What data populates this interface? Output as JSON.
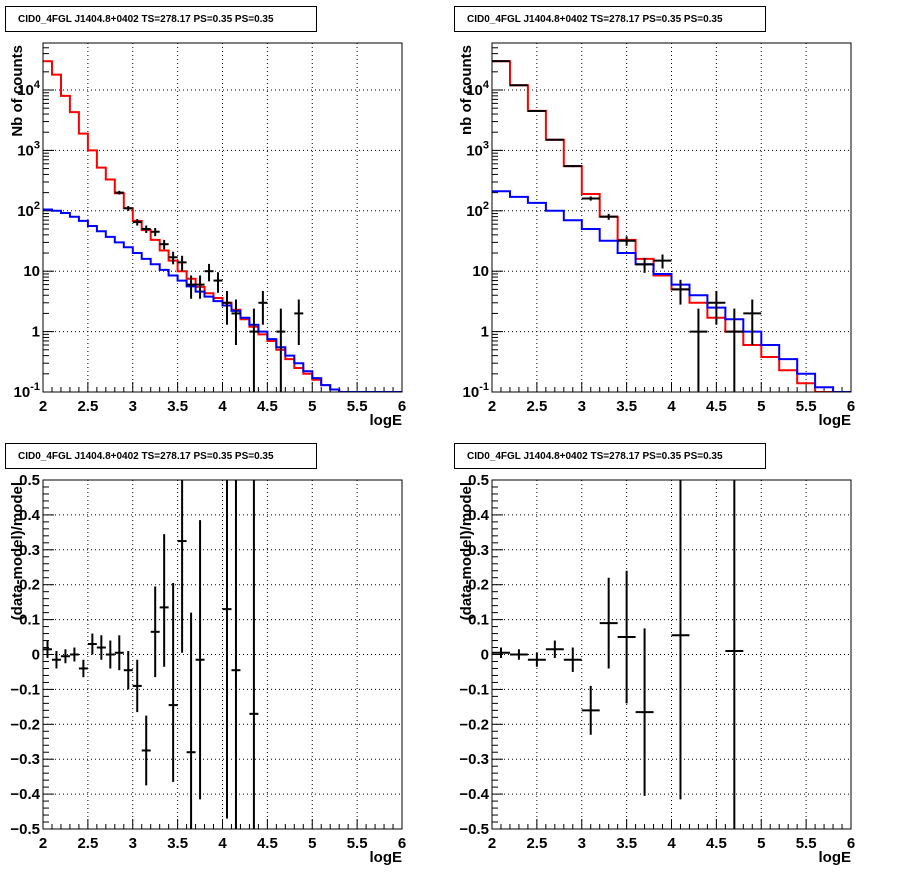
{
  "chart_data": [
    {
      "type": "line",
      "title": "CID0_4FGL J1404.8+0402 TS=278.17 PS=0.35 PS=0.35",
      "xlabel": "logE",
      "ylabel": "Nb of counts",
      "xlim": [
        2,
        6
      ],
      "ylim": [
        0.1,
        60000
      ],
      "ylog": true,
      "grid": true,
      "xticks": [
        "2",
        "2.5",
        "3",
        "3.5",
        "4",
        "4.5",
        "5",
        "5.5",
        "6"
      ],
      "yticks": [
        {
          "v": 0.1,
          "label": "10",
          "sup": "-1"
        },
        {
          "v": 1,
          "label": "1",
          "sup": ""
        },
        {
          "v": 10,
          "label": "10",
          "sup": ""
        },
        {
          "v": 100,
          "label": "10",
          "sup": "2"
        },
        {
          "v": 1000,
          "label": "10",
          "sup": "3"
        },
        {
          "v": 10000,
          "label": "10",
          "sup": "4"
        }
      ],
      "binwidth": 0.1,
      "series": [
        {
          "color": "#ff0000",
          "kind": "hist",
          "x": [
            2.0,
            2.1,
            2.2,
            2.3,
            2.4,
            2.5,
            2.6,
            2.7,
            2.8,
            2.9,
            3.0,
            3.1,
            3.2,
            3.3,
            3.4,
            3.5,
            3.6,
            3.7,
            3.8,
            3.9,
            4.0,
            4.1,
            4.2,
            4.3,
            4.4,
            4.5,
            4.6,
            4.7,
            4.8,
            4.9,
            5.0,
            5.1,
            5.2,
            5.3,
            5.4,
            5.5,
            5.6,
            5.7,
            5.8,
            5.9
          ],
          "y": [
            30000,
            18000,
            8000,
            4300,
            1900,
            1000,
            520,
            330,
            195,
            110,
            68,
            48,
            33,
            22,
            15,
            10,
            7.5,
            5.5,
            4.3,
            3.6,
            3.0,
            2.3,
            1.6,
            1.2,
            0.9,
            0.7,
            0.5,
            0.35,
            0.25,
            0.2,
            0.16,
            0.13,
            0.11,
            0.1,
            0.1,
            0.1,
            0.1,
            0.1,
            0.1,
            0.1
          ]
        },
        {
          "color": "#0000ff",
          "kind": "hist",
          "x": [
            2.0,
            2.1,
            2.2,
            2.3,
            2.4,
            2.5,
            2.6,
            2.7,
            2.8,
            2.9,
            3.0,
            3.1,
            3.2,
            3.3,
            3.4,
            3.5,
            3.6,
            3.7,
            3.8,
            3.9,
            4.0,
            4.1,
            4.2,
            4.3,
            4.4,
            4.5,
            4.6,
            4.7,
            4.8,
            4.9,
            5.0,
            5.1,
            5.2,
            5.3,
            5.4,
            5.5,
            5.6,
            5.7,
            5.8,
            5.9
          ],
          "y": [
            105,
            100,
            92,
            80,
            68,
            56,
            46,
            37,
            30,
            25,
            20,
            16,
            13,
            10.5,
            8.5,
            7,
            5.6,
            4.6,
            3.8,
            3.2,
            2.7,
            2.2,
            1.7,
            1.3,
            1.0,
            0.75,
            0.55,
            0.4,
            0.3,
            0.22,
            0.17,
            0.13,
            0.11,
            0.1,
            0.1,
            0.1,
            0.1,
            0.1,
            0.1,
            0.1
          ]
        },
        {
          "color": "#000000",
          "kind": "errbar",
          "x": [
            2.85,
            2.95,
            3.05,
            3.15,
            3.25,
            3.35,
            3.45,
            3.55,
            3.65,
            3.75,
            3.85,
            3.95,
            4.05,
            4.15,
            4.35,
            4.45,
            4.65,
            4.85
          ],
          "y": [
            200,
            110,
            65,
            50,
            45,
            28,
            17,
            14,
            6,
            6,
            10,
            7,
            3,
            2,
            1,
            3,
            1,
            2
          ],
          "yerr_low": [
            14,
            10,
            8,
            7,
            7,
            5,
            4,
            4,
            2.5,
            2.5,
            3.2,
            2.6,
            1.7,
            1.4,
            0.9,
            1.7,
            0.9,
            1.4
          ],
          "yerr_high": [
            14,
            10,
            8,
            7,
            7,
            5,
            4,
            4,
            2.5,
            2.5,
            3.2,
            2.6,
            1.7,
            1.4,
            1.4,
            1.7,
            1.4,
            1.4
          ]
        }
      ]
    },
    {
      "type": "line",
      "title": "CID0_4FGL J1404.8+0402 TS=278.17 PS=0.35 PS=0.35",
      "xlabel": "logE",
      "ylabel": "nb of counts",
      "xlim": [
        2,
        6
      ],
      "ylim": [
        0.1,
        60000
      ],
      "ylog": true,
      "grid": true,
      "xticks": [
        "2",
        "2.5",
        "3",
        "3.5",
        "4",
        "4.5",
        "5",
        "5.5",
        "6"
      ],
      "yticks": [
        {
          "v": 0.1,
          "label": "10",
          "sup": "-1"
        },
        {
          "v": 1,
          "label": "1",
          "sup": ""
        },
        {
          "v": 10,
          "label": "10",
          "sup": ""
        },
        {
          "v": 100,
          "label": "10",
          "sup": "2"
        },
        {
          "v": 1000,
          "label": "10",
          "sup": "3"
        },
        {
          "v": 10000,
          "label": "10",
          "sup": "4"
        }
      ],
      "binwidth": 0.2,
      "series": [
        {
          "color": "#ff0000",
          "kind": "hist",
          "x": [
            2.0,
            2.2,
            2.4,
            2.6,
            2.8,
            3.0,
            3.2,
            3.4,
            3.6,
            3.8,
            4.0,
            4.2,
            4.4,
            4.6,
            4.8,
            5.0,
            5.2,
            5.4,
            5.6,
            5.8
          ],
          "y": [
            30000,
            12000,
            4500,
            1500,
            550,
            190,
            80,
            33,
            16,
            8.5,
            5.0,
            3.0,
            1.7,
            1.0,
            0.6,
            0.38,
            0.23,
            0.14,
            0.1,
            0.1
          ]
        },
        {
          "color": "#0000ff",
          "kind": "hist",
          "x": [
            2.0,
            2.2,
            2.4,
            2.6,
            2.8,
            3.0,
            3.2,
            3.4,
            3.6,
            3.8,
            4.0,
            4.2,
            4.4,
            4.6,
            4.8,
            5.0,
            5.2,
            5.4,
            5.6,
            5.8
          ],
          "y": [
            210,
            170,
            135,
            100,
            70,
            50,
            32,
            20,
            13,
            9,
            6,
            4,
            2.5,
            1.6,
            1.0,
            0.6,
            0.35,
            0.2,
            0.12,
            0.1
          ]
        },
        {
          "color": "#000000",
          "kind": "errbar",
          "x": [
            2.1,
            2.3,
            2.5,
            2.7,
            2.9,
            3.1,
            3.3,
            3.5,
            3.7,
            3.9,
            4.1,
            4.3,
            4.5,
            4.7,
            4.9
          ],
          "y": [
            30000,
            12000,
            4500,
            1500,
            550,
            160,
            80,
            32,
            13,
            15,
            5,
            1,
            3,
            1,
            2
          ],
          "yerr_low": [
            170,
            110,
            67,
            39,
            23,
            12.6,
            9,
            5.7,
            3.6,
            3.9,
            2.2,
            0.9,
            1.7,
            0.9,
            1.4
          ],
          "yerr_high": [
            170,
            110,
            67,
            39,
            23,
            12.6,
            9,
            5.7,
            3.6,
            3.9,
            2.2,
            1.4,
            1.7,
            1.4,
            1.4
          ]
        }
      ]
    },
    {
      "type": "scatter",
      "title": "CID0_4FGL J1404.8+0402 TS=278.17 PS=0.35 PS=0.35",
      "xlabel": "logE",
      "ylabel": "(data-model)/model",
      "xlim": [
        2,
        6
      ],
      "ylim": [
        -0.5,
        0.5
      ],
      "ylog": false,
      "grid": true,
      "xticks": [
        "2",
        "2.5",
        "3",
        "3.5",
        "4",
        "4.5",
        "5",
        "5.5",
        "6"
      ],
      "yticks": [
        {
          "v": -0.5,
          "label": "−0.5"
        },
        {
          "v": -0.4,
          "label": "−0.4"
        },
        {
          "v": -0.3,
          "label": "−0.3"
        },
        {
          "v": -0.2,
          "label": "−0.2"
        },
        {
          "v": -0.1,
          "label": "−0.1"
        },
        {
          "v": 0,
          "label": "0"
        },
        {
          "v": 0.1,
          "label": "0.1"
        },
        {
          "v": 0.2,
          "label": "0.2"
        },
        {
          "v": 0.3,
          "label": "0.3"
        },
        {
          "v": 0.4,
          "label": "0.4"
        },
        {
          "v": 0.5,
          "label": "0.5"
        }
      ],
      "binwidth": 0.1,
      "series": [
        {
          "color": "#000000",
          "kind": "errbar",
          "x": [
            2.05,
            2.15,
            2.25,
            2.35,
            2.45,
            2.55,
            2.65,
            2.75,
            2.85,
            2.95,
            3.05,
            3.15,
            3.25,
            3.35,
            3.45,
            3.55,
            3.65,
            3.75,
            4.05,
            4.15,
            4.35
          ],
          "y": [
            0.015,
            -0.015,
            -0.005,
            0.0,
            -0.04,
            0.03,
            0.02,
            0.0,
            0.005,
            -0.045,
            -0.09,
            -0.275,
            0.065,
            0.135,
            -0.145,
            0.325,
            -0.28,
            -0.015,
            0.13,
            -0.045,
            -0.17
          ],
          "yerr_low": [
            0.025,
            0.025,
            0.02,
            0.02,
            0.025,
            0.03,
            0.035,
            0.04,
            0.05,
            0.055,
            0.075,
            0.1,
            0.13,
            0.17,
            0.22,
            0.32,
            0.23,
            0.4,
            0.6,
            0.6,
            0.8
          ],
          "yerr_high": [
            0.025,
            0.025,
            0.02,
            0.02,
            0.025,
            0.03,
            0.035,
            0.04,
            0.05,
            0.055,
            0.075,
            0.1,
            0.13,
            0.21,
            0.35,
            0.4,
            0.4,
            0.4,
            0.6,
            0.6,
            0.8
          ]
        }
      ]
    },
    {
      "type": "scatter",
      "title": "CID0_4FGL J1404.8+0402 TS=278.17 PS=0.35 PS=0.35",
      "xlabel": "logE",
      "ylabel": "(data-model)/model",
      "xlim": [
        2,
        6
      ],
      "ylim": [
        -0.5,
        0.5
      ],
      "ylog": false,
      "grid": true,
      "xticks": [
        "2",
        "2.5",
        "3",
        "3.5",
        "4",
        "4.5",
        "5",
        "5.5",
        "6"
      ],
      "yticks": [
        {
          "v": -0.5,
          "label": "−0.5"
        },
        {
          "v": -0.4,
          "label": "−0.4"
        },
        {
          "v": -0.3,
          "label": "−0.3"
        },
        {
          "v": -0.2,
          "label": "−0.2"
        },
        {
          "v": -0.1,
          "label": "−0.1"
        },
        {
          "v": 0,
          "label": "0"
        },
        {
          "v": 0.1,
          "label": "0.1"
        },
        {
          "v": 0.2,
          "label": "0.2"
        },
        {
          "v": 0.3,
          "label": "0.3"
        },
        {
          "v": 0.4,
          "label": "0.4"
        },
        {
          "v": 0.5,
          "label": "0.5"
        }
      ],
      "binwidth": 0.2,
      "series": [
        {
          "color": "#000000",
          "kind": "errbar",
          "x": [
            2.1,
            2.3,
            2.5,
            2.7,
            2.9,
            3.1,
            3.3,
            3.5,
            3.7,
            4.1,
            4.7
          ],
          "y": [
            0.005,
            0.0,
            -0.015,
            0.015,
            -0.015,
            -0.16,
            0.09,
            0.05,
            -0.165,
            0.055,
            0.01
          ],
          "yerr_low": [
            0.015,
            0.015,
            0.02,
            0.025,
            0.035,
            0.07,
            0.13,
            0.19,
            0.24,
            0.47,
            0.6
          ],
          "yerr_high": [
            0.015,
            0.015,
            0.02,
            0.025,
            0.035,
            0.07,
            0.13,
            0.19,
            0.24,
            0.6,
            0.6
          ]
        }
      ]
    }
  ]
}
